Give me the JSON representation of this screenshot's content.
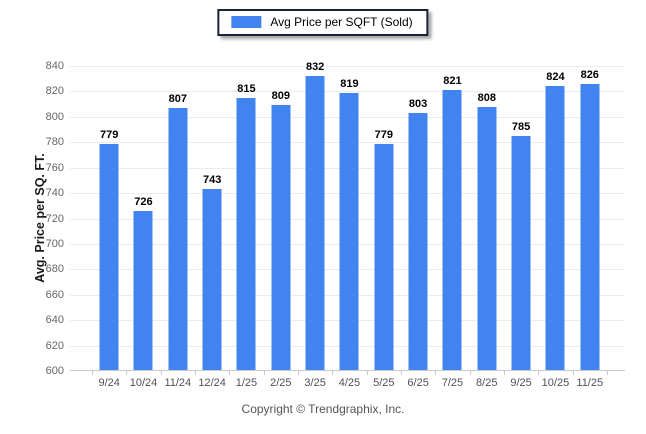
{
  "legend": {
    "label": "Avg Price per SQFT (Sold)"
  },
  "footer": {
    "text": "Copyright © Trendgraphix, Inc."
  },
  "colors": {
    "bar": "#4184F0",
    "legend_border": "#1a2238",
    "gridline": "#ececec",
    "axis_line": "#c9c9c9"
  },
  "chart_data": {
    "type": "bar",
    "title": "",
    "series_name": "Avg Price per SQFT (Sold)",
    "categories": [
      "9/24",
      "10/24",
      "11/24",
      "12/24",
      "1/25",
      "2/25",
      "3/25",
      "4/25",
      "5/25",
      "6/25",
      "7/25",
      "8/25",
      "9/25",
      "10/25",
      "11/25"
    ],
    "values": [
      779,
      726,
      807,
      743,
      815,
      809,
      832,
      819,
      779,
      803,
      821,
      808,
      785,
      824,
      826
    ],
    "xlabel": "",
    "ylabel": "Avg. Price per SQ. FT.",
    "ylim": [
      600,
      840
    ],
    "ytick_step": 20,
    "grid": "horizontal",
    "legend_position": "top-center",
    "bar_color": "#4184F0"
  }
}
